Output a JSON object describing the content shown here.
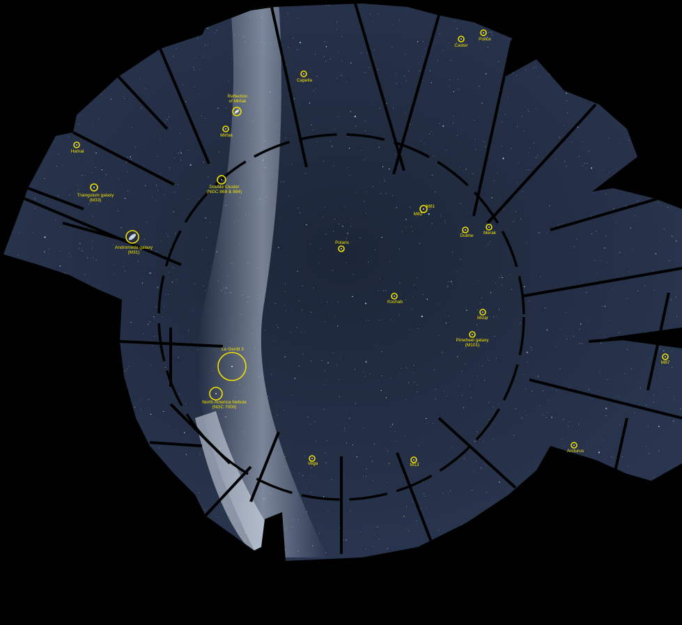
{
  "image": {
    "background_color": "#000000",
    "sky_color": "#1f2a3f",
    "milky_way_color": "#b9c6d8",
    "annotation_color": "#f4e200"
  },
  "targets": [
    {
      "id": "pollux",
      "lines": [
        "Pollux"
      ]
    },
    {
      "id": "castor",
      "lines": [
        "Castor"
      ]
    },
    {
      "id": "capella",
      "lines": [
        "Capella"
      ]
    },
    {
      "id": "reflection-mirfak",
      "lines": [
        "Reflection",
        "of Mirfak"
      ]
    },
    {
      "id": "mirfak",
      "lines": [
        "Mirfak"
      ]
    },
    {
      "id": "hamal",
      "lines": [
        "Hamal"
      ]
    },
    {
      "id": "double-cluster",
      "lines": [
        "Double Cluster",
        "(NGC 869 & 884)"
      ]
    },
    {
      "id": "triangulum-galaxy",
      "lines": [
        "Triangulum galaxy",
        "(M33)"
      ]
    },
    {
      "id": "andromeda-galaxy",
      "lines": [
        "Andromeda galaxy",
        "(M31)"
      ]
    },
    {
      "id": "m81",
      "lines": [
        "M81"
      ]
    },
    {
      "id": "m82",
      "lines": [
        "M82"
      ]
    },
    {
      "id": "dubhe",
      "lines": [
        "Dubhe"
      ]
    },
    {
      "id": "merak",
      "lines": [
        "Merak"
      ]
    },
    {
      "id": "polaris",
      "lines": [
        "Polaris"
      ]
    },
    {
      "id": "kochab",
      "lines": [
        "Kochab"
      ]
    },
    {
      "id": "mizar",
      "lines": [
        "Mizar"
      ]
    },
    {
      "id": "pinwheel-galaxy",
      "lines": [
        "Pinwheel galaxy",
        "(M101)"
      ]
    },
    {
      "id": "le-gentil-3",
      "lines": [
        "Le Gentil 3"
      ]
    },
    {
      "id": "north-america-nebula",
      "lines": [
        "North America Nebula",
        "(NGC 7000)"
      ]
    },
    {
      "id": "m87",
      "lines": [
        "M87"
      ]
    },
    {
      "id": "vega",
      "lines": [
        "Vega"
      ]
    },
    {
      "id": "m13",
      "lines": [
        "M13"
      ]
    },
    {
      "id": "arcturus",
      "lines": [
        "Arcturus"
      ]
    }
  ]
}
